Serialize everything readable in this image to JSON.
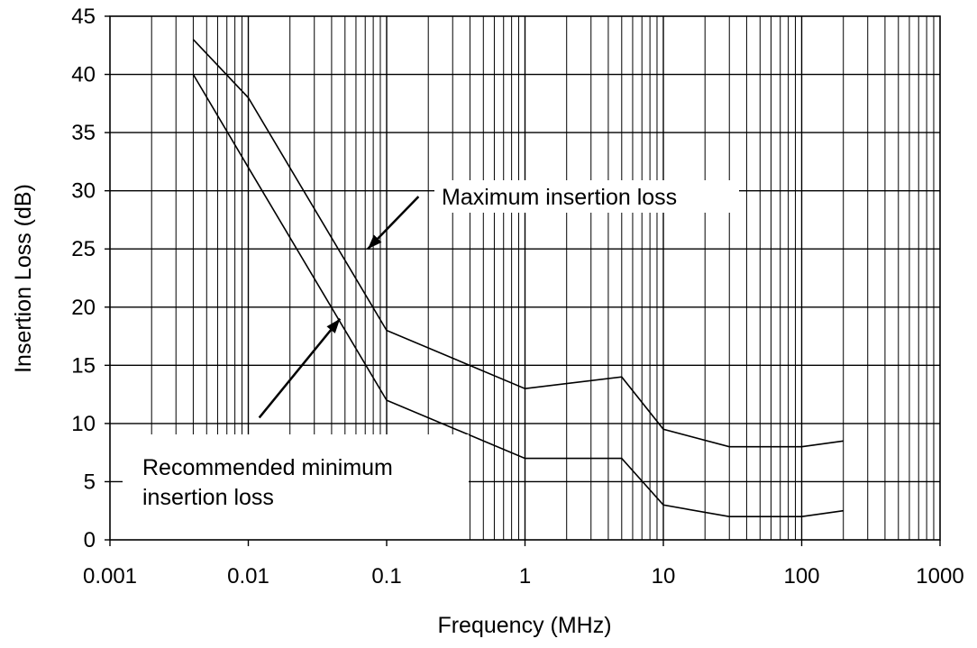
{
  "chart_data": {
    "type": "line",
    "xlabel": "Frequency (MHz)",
    "ylabel": "Insertion Loss (dB)",
    "xscale": "log",
    "xlim": [
      0.001,
      1000
    ],
    "ylim": [
      0,
      45
    ],
    "grid": true,
    "xticks": [
      "0.001",
      "0.01",
      "0.1",
      "1",
      "10",
      "100",
      "1000"
    ],
    "yticks": [
      "0",
      "5",
      "10",
      "15",
      "20",
      "25",
      "30",
      "35",
      "40",
      "45"
    ],
    "series": [
      {
        "name": "Maximum insertion loss",
        "x": [
          0.004,
          0.01,
          0.1,
          1,
          5,
          10,
          30,
          100,
          200
        ],
        "y": [
          43,
          38,
          18,
          13,
          14,
          9.5,
          8,
          8,
          8.5
        ]
      },
      {
        "name": "Recommended minimum insertion loss",
        "x": [
          0.004,
          0.01,
          0.1,
          1,
          5,
          10,
          30,
          100,
          200
        ],
        "y": [
          40,
          32,
          12,
          7,
          7,
          3,
          2,
          2,
          2.5
        ]
      }
    ],
    "annotations": [
      {
        "text": "Maximum insertion loss",
        "arrow_from": [
          0.17,
          29.5
        ],
        "arrow_to": [
          0.073,
          25
        ]
      },
      {
        "text_lines": [
          "Recommended minimum",
          "insertion loss"
        ],
        "arrow_from": [
          0.012,
          10.5
        ],
        "arrow_to": [
          0.046,
          19
        ]
      }
    ]
  }
}
